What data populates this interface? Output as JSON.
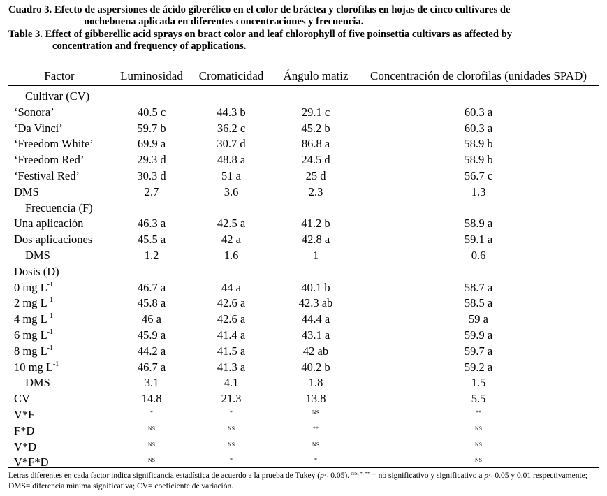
{
  "caption": {
    "es_label": "Cuadro 3.",
    "es_line1": "Efecto de aspersiones de ácido giberélico en el color de bráctea y clorofilas en hojas de cinco cultivares de",
    "es_line2": "nochebuena aplicada en diferentes concentraciones y frecuencia.",
    "en_label": "Table 3.",
    "en_line1": "Effect of gibberellic acid sprays on bract color and leaf chlorophyll of five poinsettia cultivars as affected by",
    "en_line2": "concentration and frequency of applications."
  },
  "table": {
    "headers": [
      "Factor",
      "Luminosidad",
      "Cromaticidad",
      "Ángulo matiz",
      "Concentración de clorofilas (unidades SPAD)"
    ],
    "rows": [
      {
        "factor": "Cultivar (CV)",
        "indent": true,
        "values": [
          "",
          "",
          "",
          ""
        ]
      },
      {
        "factor": "‘Sonora’",
        "values": [
          "40.5 c",
          "44.3 b",
          "29.1 c",
          "60.3 a"
        ]
      },
      {
        "factor": "‘Da Vinci’",
        "values": [
          "59.7 b",
          "36.2 c",
          "45.2 b",
          "60.3 a"
        ]
      },
      {
        "factor": "‘Freedom White’",
        "values": [
          "69.9 a",
          "30.7 d",
          "86.8 a",
          "58.9 b"
        ]
      },
      {
        "factor": "‘Freedom Red’",
        "values": [
          "29.3 d",
          "48.8 a",
          "24.5 d",
          "58.9 b"
        ]
      },
      {
        "factor": "‘Festival Red’",
        "values": [
          "30.3 d",
          "51 a",
          "25 d",
          "56.7 c"
        ]
      },
      {
        "factor": "DMS",
        "values": [
          "2.7",
          "3.6",
          "2.3",
          "1.3"
        ]
      },
      {
        "factor": "Frecuencia (F)",
        "indent": true,
        "values": [
          "",
          "",
          "",
          ""
        ]
      },
      {
        "factor": "Una aplicación",
        "values": [
          "46.3 a",
          "42.5 a",
          "41.2 b",
          "58.9 a"
        ]
      },
      {
        "factor": "Dos aplicaciones",
        "values": [
          "45.5 a",
          "42 a",
          "42.8 a",
          "59.1 a"
        ]
      },
      {
        "factor": "DMS",
        "indent": true,
        "values": [
          "1.2",
          "1.6",
          "1",
          "0.6"
        ]
      },
      {
        "factor": "Dosis (D)",
        "values": [
          "",
          "",
          "",
          ""
        ]
      },
      {
        "factor": "0 mg L",
        "sup": "-1",
        "values": [
          "46.7 a",
          "44 a",
          "40.1 b",
          "58.7 a"
        ]
      },
      {
        "factor": "2 mg L",
        "sup": "-1",
        "values": [
          "45.8 a",
          "42.6 a",
          "42.3 ab",
          "58.5 a"
        ]
      },
      {
        "factor": "4 mg L",
        "sup": "-1",
        "values": [
          "46 a",
          "42.6 a",
          "44.4 a",
          "59 a"
        ]
      },
      {
        "factor": "6 mg L",
        "sup": "-1",
        "values": [
          "45.9 a",
          "41.4 a",
          "43.1 a",
          "59.9 a"
        ]
      },
      {
        "factor": "8 mg L",
        "sup": "-1",
        "values": [
          "44.2 a",
          "41.5 a",
          "42 ab",
          "59.7 a"
        ]
      },
      {
        "factor": "10 mg L",
        "sup": "-1",
        "values": [
          "46.7 a",
          "41.3 a",
          "40.2 b",
          "59.2 a"
        ]
      },
      {
        "factor": "DMS",
        "indent": true,
        "values": [
          "3.1",
          "4.1",
          "1.8",
          "1.5"
        ]
      },
      {
        "factor": "CV",
        "values": [
          "14.8",
          "21.3",
          "13.8",
          "5.5"
        ]
      },
      {
        "factor": "V*F",
        "small": true,
        "values": [
          "*",
          "*",
          "NS",
          "**"
        ]
      },
      {
        "factor": "F*D",
        "small": true,
        "values": [
          "NS",
          "NS",
          "**",
          "NS"
        ]
      },
      {
        "factor": "V*D",
        "small": true,
        "values": [
          "NS",
          "NS",
          "NS",
          "NS"
        ]
      },
      {
        "factor": "V*F*D",
        "small": true,
        "values": [
          "NS",
          "*",
          "*",
          "NS"
        ]
      }
    ]
  },
  "footnote": {
    "part1": "Letras diferentes en cada factor indica significancia estadística de acuerdo a la prueba de Tukey (",
    "p_symbol": "p",
    "part2": "< 0.05).",
    "sup_marks": "NS, *, **",
    "part3": " = no significativo y significativo a ",
    "p_symbol2": "p",
    "part4": "< 0.05 y 0.01 respectivamente; DMS= diferencia mínima significativa; CV= coeficiente de variación."
  }
}
